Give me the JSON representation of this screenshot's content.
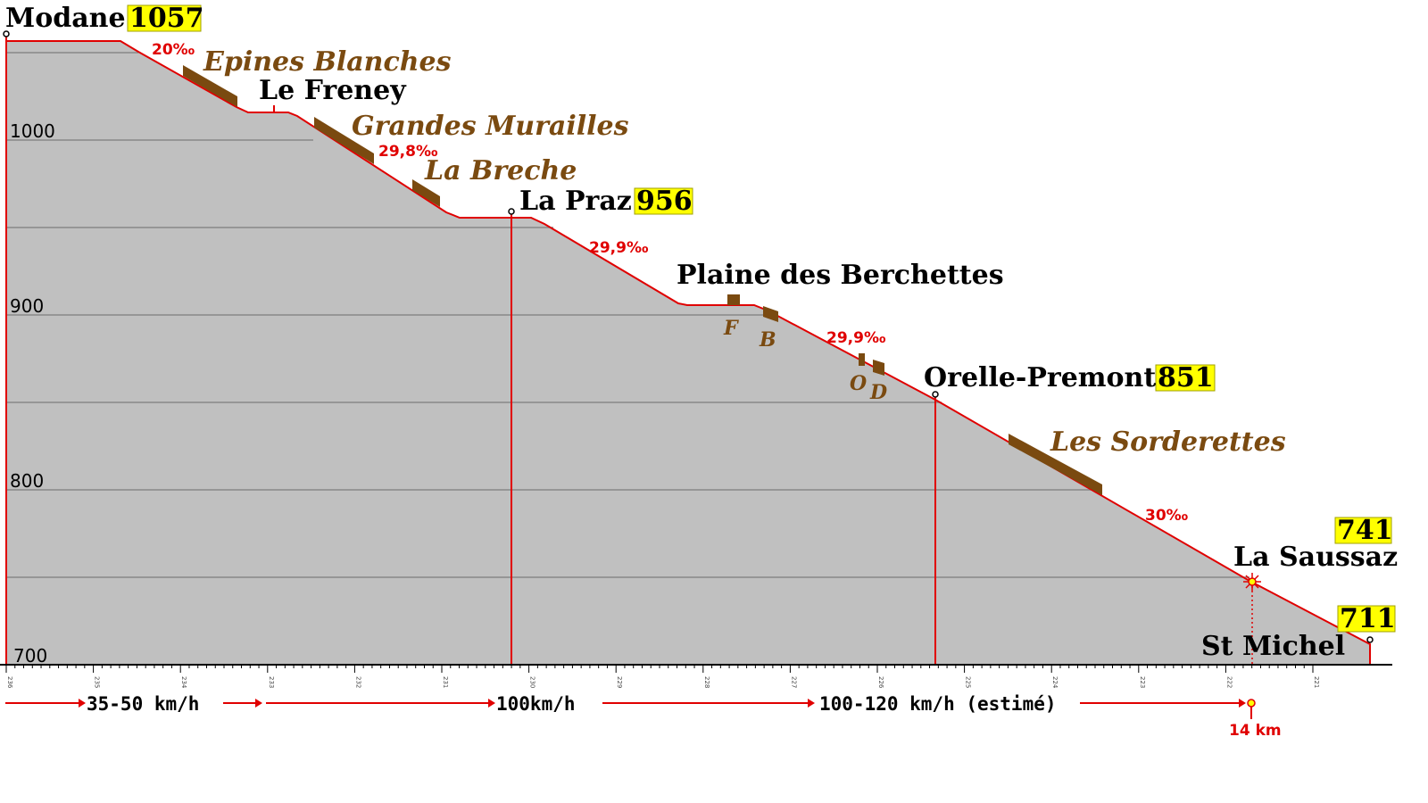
{
  "colors": {
    "track": "#e00000",
    "ground": "#c0c0c0",
    "grid": "#888888",
    "curve": "#7a4a10",
    "highlight": "#ffff00",
    "speed_arrow": "#e00000"
  },
  "elevation_ticks": [
    "1000",
    "900",
    "800",
    "700"
  ],
  "km_ticks": [
    "236",
    "235",
    "234",
    "233",
    "232",
    "231",
    "230",
    "229",
    "228",
    "227",
    "226",
    "225",
    "224",
    "223",
    "222",
    "221"
  ],
  "stations": [
    {
      "name": "Modane",
      "altitude": "1057"
    },
    {
      "name": "Le Freney",
      "altitude": ""
    },
    {
      "name": "La Praz",
      "altitude": "956"
    },
    {
      "name": "Plaine des Berchettes",
      "altitude": ""
    },
    {
      "name": "Orelle-Premont",
      "altitude": "851"
    },
    {
      "name": "La Saussaz",
      "altitude": "741"
    },
    {
      "name": "St Michel",
      "altitude": "711"
    }
  ],
  "curves": [
    "Epines Blanches",
    "Grandes Murailles",
    "La Breche",
    "Les Sorderettes",
    "F",
    "B",
    "O",
    "D"
  ],
  "gradients": [
    "20‰",
    "29,8‰",
    "29,9‰",
    "29,9‰",
    "30‰"
  ],
  "speeds": [
    "35-50 km/h",
    "100km/h",
    "100-120 km/h (estimé)"
  ],
  "distance_marker": "14 km"
}
